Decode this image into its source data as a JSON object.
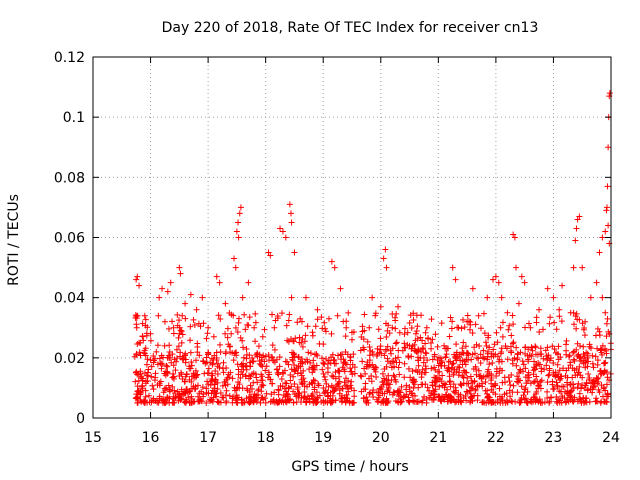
{
  "chart_data": {
    "type": "scatter",
    "title": "Day 220 of 2018, Rate Of TEC Index for receiver cn13",
    "xlabel": "GPS time / hours",
    "ylabel": "ROTI / TECUs",
    "xlim": [
      15,
      24
    ],
    "ylim": [
      0,
      0.12
    ],
    "xticks": [
      "15",
      "16",
      "17",
      "18",
      "19",
      "20",
      "21",
      "22",
      "23",
      "24"
    ],
    "yticks": [
      "0",
      "0.02",
      "0.04",
      "0.06",
      "0.08",
      "0.1",
      "0.12"
    ],
    "grid": true,
    "marker": "+",
    "series": [
      {
        "name": "ROTI",
        "color": "#ff0000",
        "points": [
          [
            15.75,
            0.046
          ],
          [
            15.77,
            0.047
          ],
          [
            15.8,
            0.044
          ],
          [
            16.15,
            0.04
          ],
          [
            16.2,
            0.043
          ],
          [
            16.3,
            0.042
          ],
          [
            16.35,
            0.045
          ],
          [
            16.5,
            0.05
          ],
          [
            16.52,
            0.048
          ],
          [
            16.6,
            0.038
          ],
          [
            16.7,
            0.041
          ],
          [
            16.9,
            0.04
          ],
          [
            17.15,
            0.047
          ],
          [
            17.2,
            0.045
          ],
          [
            17.45,
            0.053
          ],
          [
            17.48,
            0.05
          ],
          [
            17.5,
            0.062
          ],
          [
            17.52,
            0.065
          ],
          [
            17.55,
            0.068
          ],
          [
            17.57,
            0.07
          ],
          [
            17.53,
            0.06
          ],
          [
            17.7,
            0.045
          ],
          [
            18.05,
            0.055
          ],
          [
            18.08,
            0.054
          ],
          [
            18.25,
            0.063
          ],
          [
            18.3,
            0.062
          ],
          [
            18.35,
            0.06
          ],
          [
            18.42,
            0.071
          ],
          [
            18.44,
            0.068
          ],
          [
            18.45,
            0.065
          ],
          [
            18.5,
            0.055
          ],
          [
            18.7,
            0.04
          ],
          [
            19.15,
            0.052
          ],
          [
            19.2,
            0.05
          ],
          [
            19.3,
            0.043
          ],
          [
            19.85,
            0.04
          ],
          [
            20.05,
            0.053
          ],
          [
            20.08,
            0.056
          ],
          [
            20.1,
            0.05
          ],
          [
            20.3,
            0.037
          ],
          [
            20.8,
            0.03
          ],
          [
            21.25,
            0.05
          ],
          [
            21.3,
            0.046
          ],
          [
            21.6,
            0.043
          ],
          [
            21.95,
            0.046
          ],
          [
            22.0,
            0.047
          ],
          [
            22.05,
            0.045
          ],
          [
            22.3,
            0.061
          ],
          [
            22.33,
            0.06
          ],
          [
            22.35,
            0.05
          ],
          [
            22.45,
            0.047
          ],
          [
            22.5,
            0.045
          ],
          [
            22.9,
            0.043
          ],
          [
            23.15,
            0.044
          ],
          [
            23.35,
            0.05
          ],
          [
            23.38,
            0.059
          ],
          [
            23.4,
            0.063
          ],
          [
            23.42,
            0.066
          ],
          [
            23.45,
            0.067
          ],
          [
            23.5,
            0.05
          ],
          [
            23.8,
            0.055
          ],
          [
            23.85,
            0.06
          ],
          [
            23.9,
            0.062
          ],
          [
            23.92,
            0.069
          ],
          [
            23.93,
            0.07
          ],
          [
            23.94,
            0.077
          ],
          [
            23.95,
            0.09
          ],
          [
            23.96,
            0.1
          ],
          [
            23.97,
            0.107
          ],
          [
            23.98,
            0.108
          ],
          [
            23.95,
            0.064
          ],
          [
            23.97,
            0.058
          ],
          [
            15.76,
            0.03
          ],
          [
            15.8,
            0.025
          ],
          [
            15.9,
            0.034
          ],
          [
            16.0,
            0.028
          ],
          [
            16.1,
            0.022
          ],
          [
            16.25,
            0.032
          ],
          [
            16.4,
            0.03
          ],
          [
            16.55,
            0.034
          ],
          [
            16.8,
            0.036
          ],
          [
            17.0,
            0.03
          ],
          [
            17.1,
            0.027
          ],
          [
            17.3,
            0.038
          ],
          [
            17.4,
            0.028
          ],
          [
            17.6,
            0.04
          ],
          [
            17.8,
            0.03
          ],
          [
            17.95,
            0.027
          ],
          [
            18.15,
            0.03
          ],
          [
            18.45,
            0.04
          ],
          [
            18.6,
            0.033
          ],
          [
            18.9,
            0.036
          ],
          [
            19.1,
            0.033
          ],
          [
            19.25,
            0.034
          ],
          [
            19.4,
            0.03
          ],
          [
            19.5,
            0.026
          ],
          [
            19.8,
            0.03
          ],
          [
            20.0,
            0.037
          ],
          [
            20.2,
            0.03
          ],
          [
            20.5,
            0.024
          ],
          [
            20.7,
            0.022
          ],
          [
            21.1,
            0.024
          ],
          [
            21.35,
            0.03
          ],
          [
            21.5,
            0.032
          ],
          [
            21.7,
            0.034
          ],
          [
            21.85,
            0.04
          ],
          [
            22.1,
            0.04
          ],
          [
            22.2,
            0.035
          ],
          [
            22.4,
            0.038
          ],
          [
            22.6,
            0.03
          ],
          [
            22.75,
            0.036
          ],
          [
            23.0,
            0.04
          ],
          [
            23.1,
            0.036
          ],
          [
            23.3,
            0.035
          ],
          [
            23.55,
            0.032
          ],
          [
            23.65,
            0.04
          ],
          [
            23.75,
            0.045
          ],
          [
            23.85,
            0.04
          ],
          [
            23.9,
            0.035
          ]
        ]
      }
    ],
    "dense_band": {
      "description": "dense cloud of points 0.003-0.02",
      "segments": [
        {
          "x_start": 15.72,
          "x_end": 19.55,
          "y_min": 0.003,
          "y_max": 0.02
        },
        {
          "x_start": 19.65,
          "x_end": 24.0,
          "y_min": 0.003,
          "y_max": 0.022
        }
      ]
    }
  }
}
